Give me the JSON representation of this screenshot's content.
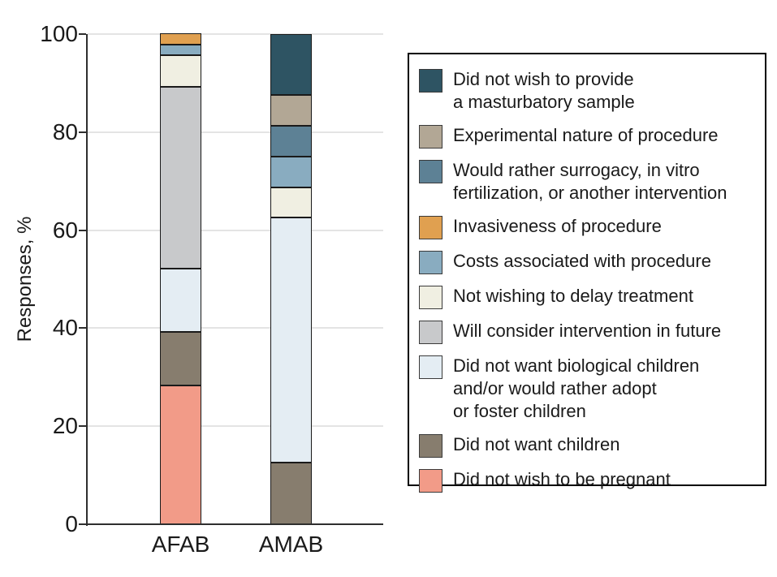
{
  "chart_data": {
    "type": "bar",
    "stacked": true,
    "title": "",
    "ylabel": "Responses, %",
    "xlabel": "",
    "ylim": [
      0,
      100
    ],
    "yticks": [
      0,
      20,
      40,
      60,
      80,
      100
    ],
    "grid": true,
    "legend_position": "right",
    "categories": [
      "AFAB",
      "AMAB"
    ],
    "series": [
      {
        "name": "Did not wish to be pregnant",
        "color": "#F29B88",
        "values": [
          28.3,
          0
        ]
      },
      {
        "name": "Did not want children",
        "color": "#877D6E",
        "values": [
          10.9,
          12.5
        ]
      },
      {
        "name": "Did not want biological children and/or would rather adopt or foster children",
        "color": "#E4EDF3",
        "values": [
          13.0,
          50.0
        ]
      },
      {
        "name": "Will consider intervention in future",
        "color": "#C8C9CB",
        "values": [
          37.0,
          0
        ]
      },
      {
        "name": "Not wishing to delay treatment",
        "color": "#F0EFE2",
        "values": [
          6.5,
          6.25
        ]
      },
      {
        "name": "Costs associated with procedure",
        "color": "#89ACC0",
        "values": [
          2.2,
          6.25
        ]
      },
      {
        "name": "Invasiveness of procedure",
        "color": "#E0A050",
        "values": [
          2.2,
          0
        ]
      },
      {
        "name": "Would rather surrogacy, in vitro fertilization, or another intervention",
        "color": "#5D8195",
        "values": [
          0,
          6.25
        ]
      },
      {
        "name": "Experimental nature of procedure",
        "color": "#B2A795",
        "values": [
          0,
          6.25
        ]
      },
      {
        "name": "Did not wish to provide a masturbatory sample",
        "color": "#2E5463",
        "values": [
          0,
          12.5
        ]
      }
    ]
  },
  "legend": {
    "items": [
      {
        "color": "#2E5463",
        "lines": [
          "Did not wish to provide",
          "a masturbatory sample"
        ]
      },
      {
        "color": "#B2A795",
        "lines": [
          "Experimental nature of procedure"
        ]
      },
      {
        "color": "#5D8195",
        "lines": [
          "Would rather surrogacy, in vitro",
          "fertilization, or another intervention"
        ]
      },
      {
        "color": "#E0A050",
        "lines": [
          "Invasiveness of procedure"
        ]
      },
      {
        "color": "#89ACC0",
        "lines": [
          "Costs associated with procedure"
        ]
      },
      {
        "color": "#F0EFE2",
        "lines": [
          "Not wishing to delay treatment"
        ]
      },
      {
        "color": "#C8C9CB",
        "lines": [
          "Will consider intervention in future"
        ]
      },
      {
        "color": "#E4EDF3",
        "lines": [
          "Did not want biological children",
          "and/or would rather adopt",
          "or foster children"
        ]
      },
      {
        "color": "#877D6E",
        "lines": [
          "Did not want children"
        ]
      },
      {
        "color": "#F29B88",
        "lines": [
          "Did not wish to be pregnant"
        ]
      }
    ]
  },
  "colors": {
    "axis": "#2E2E2E",
    "grid": "#E4E4E4",
    "text": "#1A1A1A",
    "background": "#FFFFFF"
  }
}
